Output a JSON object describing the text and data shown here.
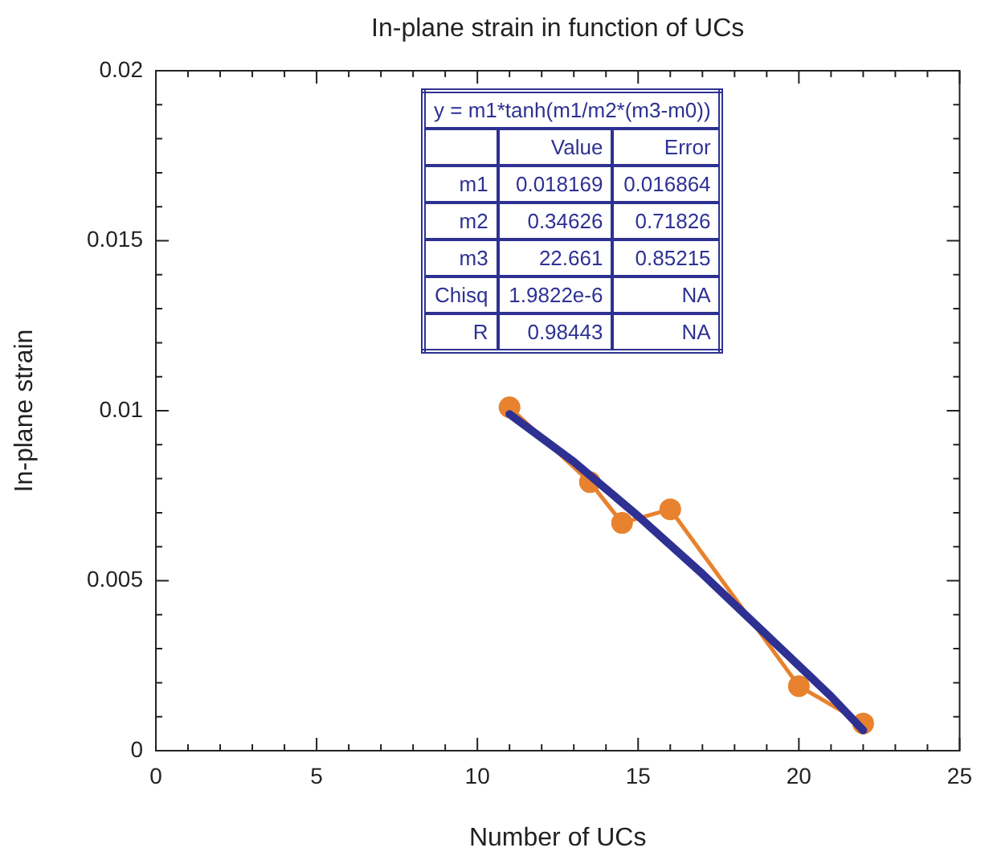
{
  "chart_data": {
    "type": "line",
    "title": "In-plane strain in function of UCs",
    "xlabel": "Number of UCs",
    "ylabel": "In-plane strain",
    "xlim": [
      0,
      25
    ],
    "ylim": [
      0,
      0.02
    ],
    "xticks": [
      0,
      {
        "value": 1,
        "label": null
      },
      {
        "value": 2,
        "label": null
      },
      {
        "value": 3,
        "label": null
      },
      {
        "value": 4,
        "label": null
      },
      5,
      {
        "value": 6,
        "label": null
      },
      {
        "value": 7,
        "label": null
      },
      {
        "value": 8,
        "label": null
      },
      {
        "value": 9,
        "label": null
      },
      10,
      {
        "value": 11,
        "label": null
      },
      {
        "value": 12,
        "label": null
      },
      {
        "value": 13,
        "label": null
      },
      {
        "value": 14,
        "label": null
      },
      15,
      {
        "value": 16,
        "label": null
      },
      {
        "value": 17,
        "label": null
      },
      {
        "value": 18,
        "label": null
      },
      {
        "value": 19,
        "label": null
      },
      20,
      {
        "value": 21,
        "label": null
      },
      {
        "value": 22,
        "label": null
      },
      {
        "value": 23,
        "label": null
      },
      {
        "value": 24,
        "label": null
      },
      25
    ],
    "yticks": [
      0,
      {
        "value": 0.001,
        "label": null
      },
      {
        "value": 0.002,
        "label": null
      },
      {
        "value": 0.003,
        "label": null
      },
      {
        "value": 0.004,
        "label": null
      },
      0.005,
      {
        "value": 0.006,
        "label": null
      },
      {
        "value": 0.007,
        "label": null
      },
      {
        "value": 0.008,
        "label": null
      },
      {
        "value": 0.009,
        "label": null
      },
      0.01,
      {
        "value": 0.011,
        "label": null
      },
      {
        "value": 0.012,
        "label": null
      },
      {
        "value": 0.013,
        "label": null
      },
      {
        "value": 0.014,
        "label": null
      },
      0.015,
      {
        "value": 0.016,
        "label": null
      },
      {
        "value": 0.017,
        "label": null
      },
      {
        "value": 0.018,
        "label": null
      },
      {
        "value": 0.019,
        "label": null
      },
      0.02
    ],
    "grid": false,
    "legend": false,
    "series": [
      {
        "color": "#e8822e",
        "marker": "circle",
        "x": [
          11,
          13.5,
          14.5,
          16,
          20,
          22
        ],
        "values": [
          0.0101,
          0.0079,
          0.0067,
          0.0071,
          0.0019,
          0.0008
        ]
      },
      {
        "color": "#2e3192",
        "marker": "none",
        "x": [
          11,
          13,
          15,
          17,
          19,
          21,
          22
        ],
        "values": [
          0.0099,
          0.0085,
          0.0069,
          0.0052,
          0.0034,
          0.0016,
          0.0006
        ]
      }
    ],
    "annotations": [
      "y = m1*tanh(m1/m2*(m3-m0))",
      "Value",
      "Error",
      "m1",
      "0.018169",
      "0.016864",
      "m2",
      "0.34626",
      "0.71826",
      "m3",
      "22.661",
      "0.85215",
      "Chisq",
      "1.9822e-6",
      "NA",
      "R",
      "0.98443",
      "NA"
    ]
  }
}
